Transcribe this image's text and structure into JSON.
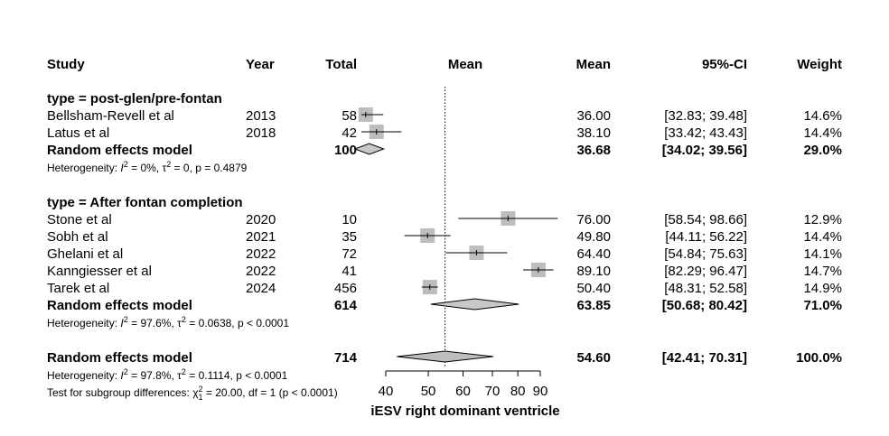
{
  "chart_data": {
    "type": "forest",
    "xlabel": "iESV right dominant ventricle",
    "x_axis": {
      "ticks": [
        40,
        50,
        60,
        70,
        80,
        90
      ],
      "range": [
        40,
        90
      ]
    },
    "reference_line": 54.6,
    "columns": {
      "study": "Study",
      "year": "Year",
      "total": "Total",
      "plot": "Mean",
      "mean": "Mean",
      "ci": "95%-CI",
      "weight": "Weight"
    },
    "subgroups": [
      {
        "label": "type = post-glen/pre-fontan",
        "studies": [
          {
            "study": "Bellsham-Revell et al",
            "year": "2013",
            "total": "58",
            "mean": 36.0,
            "lower": 32.83,
            "upper": 39.48,
            "mean_text": "36.00",
            "ci_text": "[32.83; 39.48]",
            "weight_text": "14.6%"
          },
          {
            "study": "Latus et al",
            "year": "2018",
            "total": "42",
            "mean": 38.1,
            "lower": 33.42,
            "upper": 43.43,
            "mean_text": "38.10",
            "ci_text": "[33.42; 43.43]",
            "weight_text": "14.4%"
          }
        ],
        "summary": {
          "label": "Random effects model",
          "total": "100",
          "mean": 36.68,
          "lower": 34.02,
          "upper": 39.56,
          "mean_text": "36.68",
          "ci_text": "[34.02; 39.56]",
          "weight_text": "29.0%"
        },
        "heterogeneity": {
          "prefix": "Heterogeneity: ",
          "i2": "0%",
          "tau2": "0",
          "p": "p = 0.4879"
        }
      },
      {
        "label": "type = After fontan completion",
        "studies": [
          {
            "study": "Stone et al",
            "year": "2020",
            "total": "10",
            "mean": 76.0,
            "lower": 58.54,
            "upper": 98.66,
            "mean_text": "76.00",
            "ci_text": "[58.54; 98.66]",
            "weight_text": "12.9%"
          },
          {
            "study": "Sobh et al",
            "year": "2021",
            "total": "35",
            "mean": 49.8,
            "lower": 44.11,
            "upper": 56.22,
            "mean_text": "49.80",
            "ci_text": "[44.11; 56.22]",
            "weight_text": "14.4%"
          },
          {
            "study": "Ghelani et al",
            "year": "2022",
            "total": "72",
            "mean": 64.4,
            "lower": 54.84,
            "upper": 75.63,
            "mean_text": "64.40",
            "ci_text": "[54.84; 75.63]",
            "weight_text": "14.1%"
          },
          {
            "study": "Kanngiesser et al",
            "year": "2022",
            "total": "41",
            "mean": 89.1,
            "lower": 82.29,
            "upper": 96.47,
            "mean_text": "89.10",
            "ci_text": "[82.29; 96.47]",
            "weight_text": "14.7%"
          },
          {
            "study": "Tarek et al",
            "year": "2024",
            "total": "456",
            "mean": 50.4,
            "lower": 48.31,
            "upper": 52.58,
            "mean_text": "50.40",
            "ci_text": "[48.31; 52.58]",
            "weight_text": "14.9%"
          }
        ],
        "summary": {
          "label": "Random effects model",
          "total": "614",
          "mean": 63.85,
          "lower": 50.68,
          "upper": 80.42,
          "mean_text": "63.85",
          "ci_text": "[50.68; 80.42]",
          "weight_text": "71.0%"
        },
        "heterogeneity": {
          "prefix": "Heterogeneity: ",
          "i2": "97.6%",
          "tau2": "0.0638",
          "p": "p < 0.0001"
        }
      }
    ],
    "overall": {
      "label": "Random effects model",
      "total": "714",
      "mean": 54.6,
      "lower": 42.41,
      "upper": 70.31,
      "mean_text": "54.60",
      "ci_text": "[42.41; 70.31]",
      "weight_text": "100.0%",
      "heterogeneity": {
        "prefix": "Heterogeneity: ",
        "i2": "97.8%",
        "tau2": "0.1114",
        "p": "p < 0.0001"
      },
      "subgroup_test": {
        "prefix": "Test for subgroup differences: ",
        "chi2": "20.00",
        "df_text": "df = 1",
        "p": "p < 0.0001"
      }
    }
  }
}
